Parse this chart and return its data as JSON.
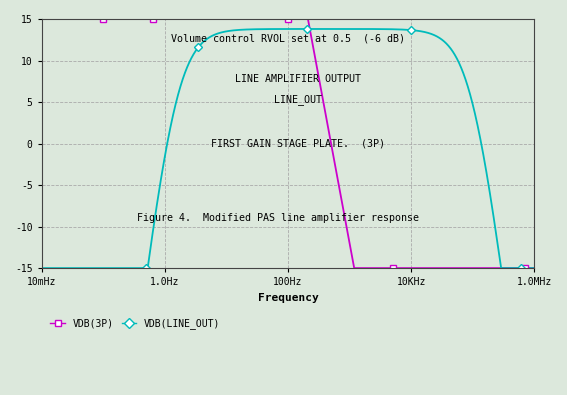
{
  "title_annotation": "Volume control RVOL set at 0.5  (-6 dB)",
  "label_line_out_1": "LINE AMPLIFIER OUTPUT",
  "label_line_out_2": "LINE_OUT",
  "label_3p": "FIRST GAIN STAGE PLATE.  (3P)",
  "figure_caption": "Figure 4.  Modified PAS line amplifier response",
  "xlabel": "Frequency",
  "ylim": [
    -15,
    15
  ],
  "freq_min": 0.01,
  "freq_max": 1000000,
  "xtick_labels": [
    "10mHz",
    "1.0Hz",
    "100Hz",
    "10KHz",
    "1.0MHz"
  ],
  "xtick_positions": [
    0.01,
    1.0,
    100.0,
    10000.0,
    1000000.0
  ],
  "ytick_positions": [
    -15,
    -10,
    -5,
    0,
    5,
    10,
    15
  ],
  "color_3p": "#cc00cc",
  "color_line_out": "#00bbbb",
  "bg_color": "#dce8dc",
  "legend_3p": "VDB(3P)",
  "legend_line_out": "VDB(LINE_OUT)",
  "font_family": "monospace",
  "marker_3p_freqs": [
    0.1,
    0.65,
    100,
    5000,
    700000
  ],
  "marker_lo_freqs": [
    0.5,
    3.5,
    200,
    10000,
    600000
  ]
}
